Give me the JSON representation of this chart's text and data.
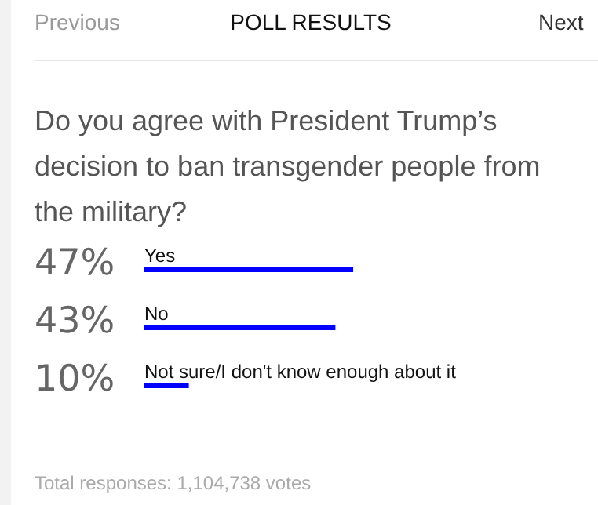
{
  "chart_data": {
    "type": "bar",
    "orientation": "horizontal",
    "title": "POLL RESULTS",
    "subtitle": "Do you agree with President Trump’s decision to ban transgender people from the military?",
    "categories": [
      "Yes",
      "No",
      "Not sure/I don't know enough about it"
    ],
    "values": [
      47,
      43,
      10
    ],
    "value_labels": [
      "47%",
      "43%",
      "10%"
    ],
    "color": "#0000ff",
    "annotations": [
      "Previous",
      "Next",
      "Total responses: 1,104,738 votes"
    ]
  }
}
